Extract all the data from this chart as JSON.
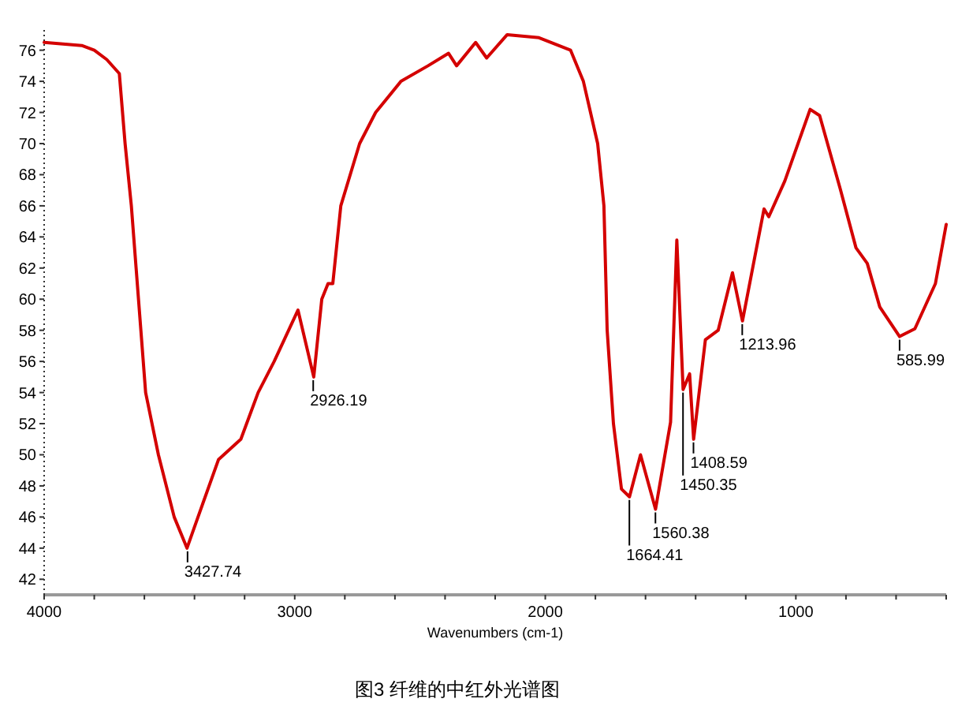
{
  "chart_data": {
    "type": "line",
    "xlabel": "Wavenumbers (cm-1)",
    "xlim": [
      4000,
      400
    ],
    "ylim": [
      41,
      77.3
    ],
    "xticks": [
      4000,
      {
        "value": 3800,
        "label": null
      },
      {
        "value": 3600,
        "label": null
      },
      {
        "value": 3400,
        "label": null
      },
      {
        "value": 3200,
        "label": null
      },
      3000,
      {
        "value": 2800,
        "label": null
      },
      {
        "value": 2600,
        "label": null
      },
      {
        "value": 2400,
        "label": null
      },
      {
        "value": 2200,
        "label": null
      },
      2000,
      {
        "value": 1800,
        "label": null
      },
      {
        "value": 1600,
        "label": null
      },
      {
        "value": 1400,
        "label": null
      },
      {
        "value": 1200,
        "label": null
      },
      1000,
      {
        "value": 800,
        "label": null
      },
      {
        "value": 600,
        "label": null
      },
      {
        "value": 400,
        "label": null
      }
    ],
    "yticks": [
      42,
      44,
      46,
      48,
      50,
      52,
      54,
      56,
      58,
      60,
      62,
      64,
      66,
      68,
      70,
      72,
      74,
      76
    ],
    "series": [
      {
        "color": "#d40000",
        "x": [
          4000,
          3850,
          3800,
          3750,
          3700,
          3677,
          3652,
          3633,
          3614,
          3595,
          3544,
          3481,
          3430,
          3386,
          3304,
          3215,
          3146,
          3082,
          2987,
          2924,
          2892,
          2867,
          2848,
          2816,
          2741,
          2677,
          2576,
          2468,
          2386,
          2354,
          2278,
          2234,
          2152,
          2025,
          1899,
          1848,
          1791,
          1766,
          1753,
          1728,
          1696,
          1664,
          1620,
          1560,
          1500,
          1475,
          1450,
          1424,
          1408,
          1361,
          1310,
          1253,
          1213,
          1127,
          1108,
          1044,
          943,
          905,
          823,
          760,
          715,
          665,
          586,
          525,
          443,
          400
        ],
        "values": [
          76.5,
          76.3,
          76,
          75.4,
          74.5,
          70,
          66,
          62,
          58,
          54,
          50,
          46,
          44,
          46,
          49.7,
          51,
          54,
          56,
          59.3,
          55,
          60,
          61,
          61,
          66,
          70,
          72,
          74,
          75,
          75.8,
          75,
          76.5,
          75.5,
          77,
          76.8,
          76,
          74,
          70,
          66,
          58,
          52,
          47.8,
          47.3,
          50,
          46.5,
          52.1,
          63.8,
          54.2,
          55.2,
          51,
          57.4,
          58,
          61.7,
          58.6,
          65.8,
          65.3,
          67.6,
          72.2,
          71.8,
          67.1,
          63.3,
          62.3,
          59.5,
          57.6,
          58.1,
          61,
          64.8
        ]
      }
    ],
    "annotations": [
      {
        "text": "3427.74",
        "x": 3427.74,
        "y": 44
      },
      {
        "text": "2926.19",
        "x": 2926.19,
        "y": 55
      },
      {
        "text": "1664.41",
        "x": 1664.41,
        "y": 47.3
      },
      {
        "text": "1560.38",
        "x": 1560.38,
        "y": 46.5
      },
      {
        "text": "1450.35",
        "x": 1450.35,
        "y": 54.2
      },
      {
        "text": "1408.59",
        "x": 1408.59,
        "y": 51
      },
      {
        "text": "1213.96",
        "x": 1213.96,
        "y": 58.6
      },
      {
        "text": "585.99",
        "x": 585.99,
        "y": 57.6
      },
      "图3  纤维的中红外光谱图"
    ]
  }
}
